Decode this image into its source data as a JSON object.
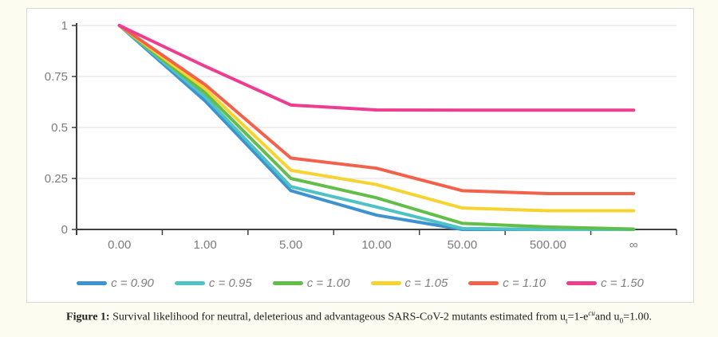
{
  "caption": {
    "label": "Figure 1:",
    "part1": " Survival likelihood for neutral, deleterious and advantageous SARS-CoV-2 mutants estimated from u",
    "sub1": "t",
    "part2": "=1-e",
    "sup1": "cu",
    "part3": "and u",
    "sub2": "0",
    "part4": "=1.00."
  },
  "colors": {
    "axis": "#404040",
    "grid": "#e3e3e3",
    "tick_text": "#7b7b7b",
    "panel_border": "#d8d8d8",
    "page_background": "#fdfcf0"
  },
  "chart_data": {
    "type": "line",
    "title": "",
    "xlabel": "",
    "ylabel": "",
    "grid": true,
    "legend_position": "bottom",
    "ylim": [
      0,
      1
    ],
    "yticks": [
      0,
      0.25,
      0.5,
      0.75,
      1
    ],
    "ytick_labels": [
      "0",
      "0.25",
      "0.5",
      "0.75",
      "1"
    ],
    "categories": [
      "0.00",
      "1.00",
      "5.00",
      "10.00",
      "50.00",
      "500.00",
      "∞"
    ],
    "series": [
      {
        "name": "c = 0.90",
        "color": "#3d92d0",
        "values": [
          1.0,
          0.63,
          0.19,
          0.07,
          0.0,
          0.0,
          0.0
        ]
      },
      {
        "name": "c = 0.95",
        "color": "#4fc2c3",
        "values": [
          1.0,
          0.65,
          0.21,
          0.11,
          0.005,
          0.0,
          0.0
        ]
      },
      {
        "name": "c = 1.00",
        "color": "#62bd49",
        "values": [
          1.0,
          0.67,
          0.25,
          0.155,
          0.03,
          0.012,
          0.002
        ]
      },
      {
        "name": "c = 1.05",
        "color": "#f6d331",
        "values": [
          1.0,
          0.69,
          0.29,
          0.22,
          0.105,
          0.092,
          0.092
        ]
      },
      {
        "name": "c = 1.10",
        "color": "#f3614b",
        "values": [
          1.0,
          0.71,
          0.35,
          0.3,
          0.19,
          0.176,
          0.176
        ]
      },
      {
        "name": "c = 1.50",
        "color": "#ee3d90",
        "values": [
          1.0,
          0.8,
          0.61,
          0.586,
          0.585,
          0.585,
          0.585
        ]
      }
    ]
  }
}
